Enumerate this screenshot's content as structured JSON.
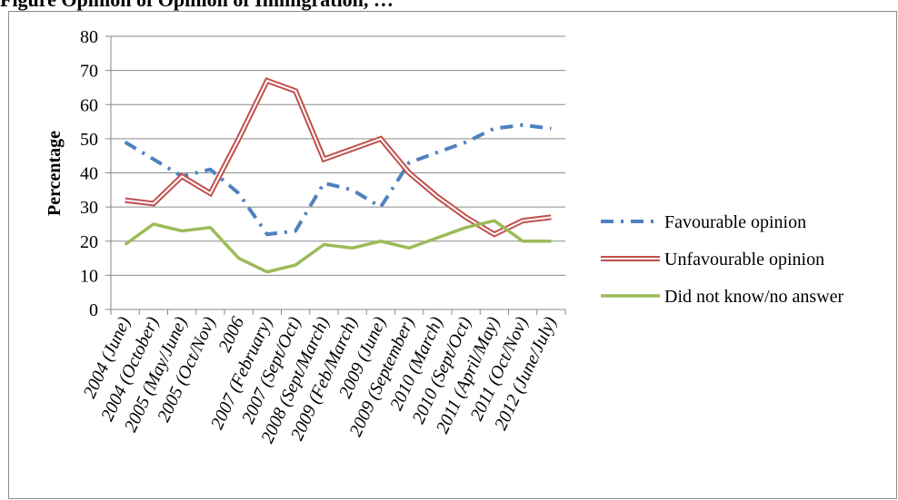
{
  "heading_fragment": "Figure  Opinion of Opinion of Immigration, …",
  "chart_data": {
    "type": "line",
    "title": "",
    "xlabel": "",
    "ylabel": "Percentage",
    "ylim": [
      0,
      80
    ],
    "yticks": [
      0,
      10,
      20,
      30,
      40,
      50,
      60,
      70,
      80
    ],
    "grid": true,
    "legend_position": "right",
    "categories": [
      "2004 (June)",
      "2004 (October)",
      "2005 (May/June)",
      "2005 (Oct/Nov)",
      "2006",
      "2007 (February)",
      "2007 (Sept/Oct)",
      "2008 (Sept/March)",
      "2009 (Feb/March)",
      "2009 (June)",
      "2009 (September)",
      "2010 (March)",
      "2010 (Sept/Oct)",
      "2011 (April/May)",
      "2011 (Oct/Nov)",
      "2012 (June/July)"
    ],
    "series": [
      {
        "name": "Favourable opinion",
        "values": [
          49,
          44,
          39,
          41,
          34,
          22,
          23,
          37,
          35,
          30,
          43,
          46,
          49,
          53,
          54,
          53
        ],
        "color": "#4f81bd",
        "style": "dashdot"
      },
      {
        "name": "Unfavourable opinion",
        "values": [
          32,
          31,
          39,
          34,
          50,
          67,
          64,
          44,
          47,
          50,
          40,
          33,
          27,
          22,
          26,
          27
        ],
        "color": "#c0504d",
        "style": "double"
      },
      {
        "name": "Did not know/no answer",
        "values": [
          19,
          25,
          23,
          24,
          15,
          11,
          13,
          19,
          18,
          20,
          18,
          21,
          24,
          26,
          20,
          20
        ],
        "color": "#9bbb59",
        "style": "solid"
      }
    ]
  }
}
